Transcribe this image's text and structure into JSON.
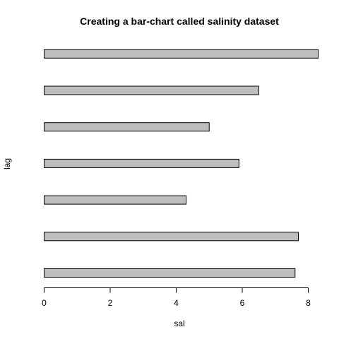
{
  "chart_data": {
    "type": "bar",
    "orientation": "horizontal",
    "title": "Creating a bar-chart called salinity dataset",
    "xlabel": "sal",
    "ylabel": "lag",
    "values": [
      7.6,
      7.7,
      4.3,
      5.9,
      5.0,
      6.5,
      8.3
    ],
    "xlim": [
      0,
      8.3
    ],
    "xticks": [
      0,
      2,
      4,
      6,
      8
    ],
    "bar_color": "#bebebe",
    "border_color": "#000000",
    "grid": false,
    "legend": false
  }
}
